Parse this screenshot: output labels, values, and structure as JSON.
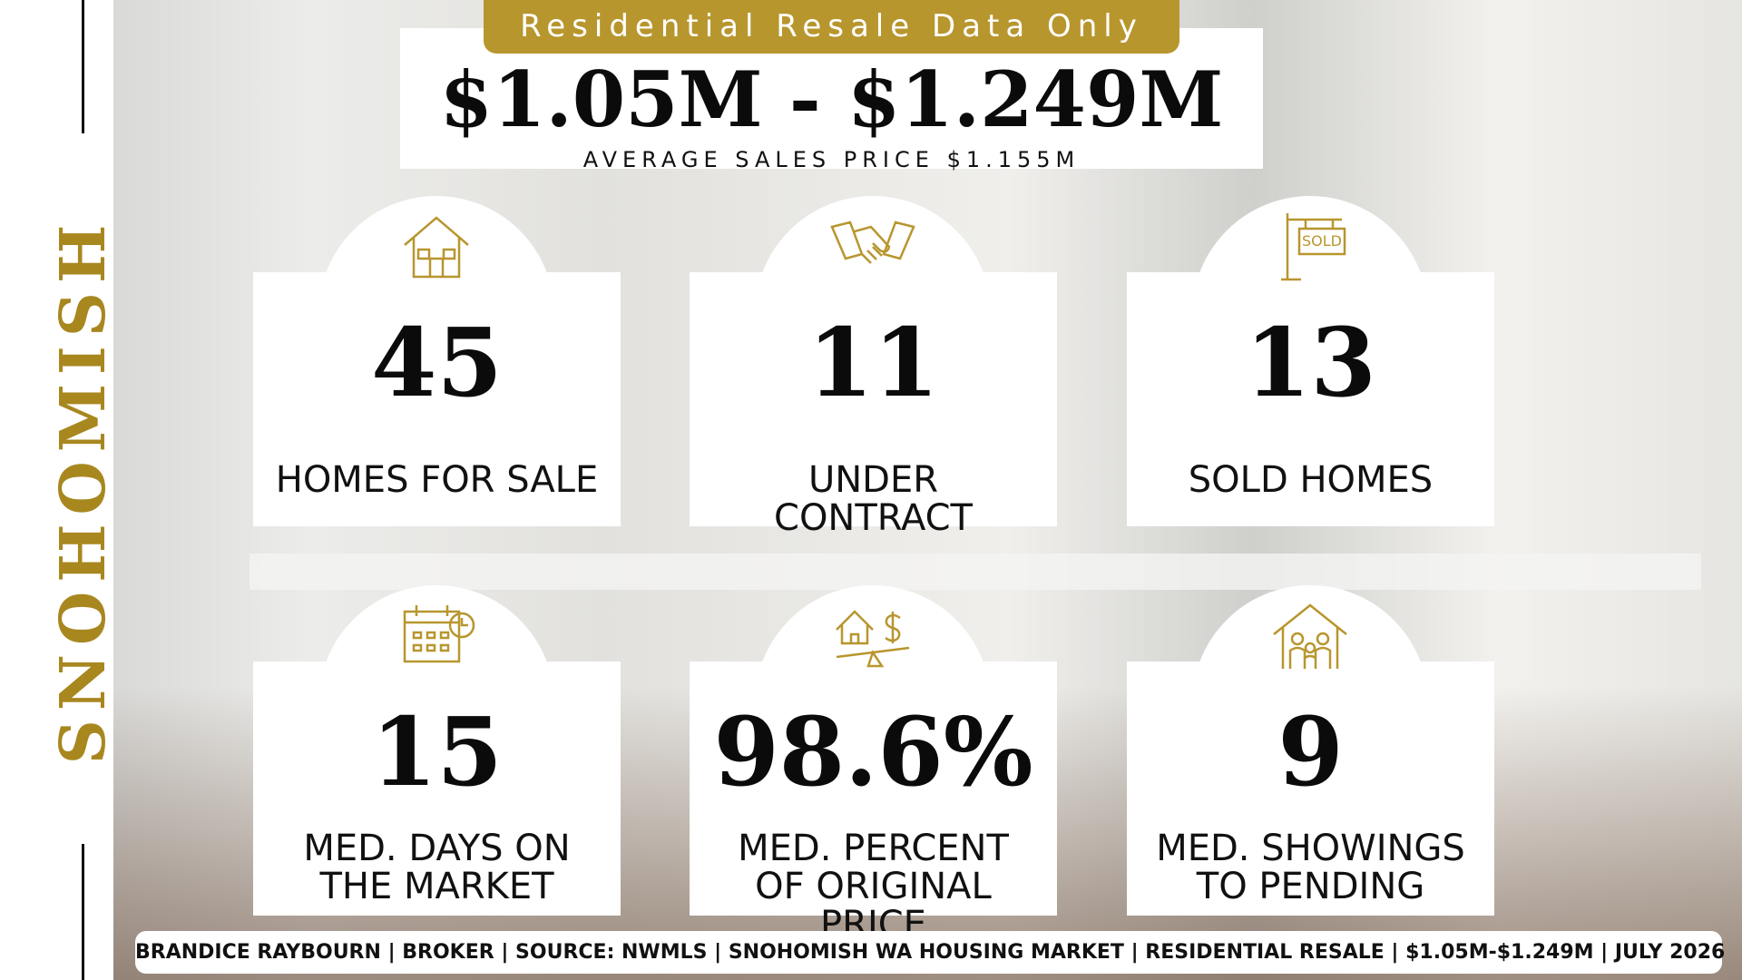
{
  "header": {
    "badge": "Residential Resale Data Only",
    "title": "$1.05M - $1.249M",
    "subtitle": "AVERAGE SALES PRICE $1.155M"
  },
  "side_label": "SNOHOMISH",
  "stats": [
    {
      "value": "45",
      "label": "HOMES FOR SALE"
    },
    {
      "value": "11",
      "label": "UNDER CONTRACT"
    },
    {
      "value": "13",
      "label": "SOLD HOMES"
    },
    {
      "value": "15",
      "label": "MED. DAYS ON THE MARKET"
    },
    {
      "value": "98.6%",
      "label": "MED. PERCENT OF ORIGINAL PRICE"
    },
    {
      "value": "9",
      "label": "MED. SHOWINGS TO PENDING"
    }
  ],
  "footer": "BRANDICE RAYBOURN | BROKER | SOURCE: NWMLS | SNOHOMISH WA HOUSING MARKET | RESIDENTIAL RESALE | $1.05M-$1.249M | JULY 2026"
}
